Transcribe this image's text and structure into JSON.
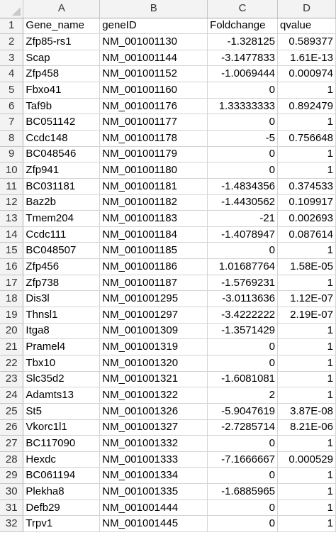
{
  "columns": [
    "A",
    "B",
    "C",
    "D"
  ],
  "rows": [
    [
      "Gene_name",
      "geneID",
      "Foldchange",
      "qvalue"
    ],
    [
      "Zfp85-rs1",
      "NM_001001130",
      "-1.328125",
      "0.589377"
    ],
    [
      "Scap",
      "NM_001001144",
      "-3.1477833",
      "1.61E-13"
    ],
    [
      "Zfp458",
      "NM_001001152",
      "-1.0069444",
      "0.000974"
    ],
    [
      "Fbxo41",
      "NM_001001160",
      "0",
      "1"
    ],
    [
      "Taf9b",
      "NM_001001176",
      "1.33333333",
      "0.892479"
    ],
    [
      "BC051142",
      "NM_001001177",
      "0",
      "1"
    ],
    [
      "Ccdc148",
      "NM_001001178",
      "-5",
      "0.756648"
    ],
    [
      "BC048546",
      "NM_001001179",
      "0",
      "1"
    ],
    [
      "Zfp941",
      "NM_001001180",
      "0",
      "1"
    ],
    [
      "BC031181",
      "NM_001001181",
      "-1.4834356",
      "0.374533"
    ],
    [
      "Baz2b",
      "NM_001001182",
      "-1.4430562",
      "0.109917"
    ],
    [
      "Tmem204",
      "NM_001001183",
      "-21",
      "0.002693"
    ],
    [
      "Ccdc111",
      "NM_001001184",
      "-1.4078947",
      "0.087614"
    ],
    [
      "BC048507",
      "NM_001001185",
      "0",
      "1"
    ],
    [
      "Zfp456",
      "NM_001001186",
      "1.01687764",
      "1.58E-05"
    ],
    [
      "Zfp738",
      "NM_001001187",
      "-1.5769231",
      "1"
    ],
    [
      "Dis3l",
      "NM_001001295",
      "-3.0113636",
      "1.12E-07"
    ],
    [
      "Thnsl1",
      "NM_001001297",
      "-3.4222222",
      "2.19E-07"
    ],
    [
      "Itga8",
      "NM_001001309",
      "-1.3571429",
      "1"
    ],
    [
      "Pramel4",
      "NM_001001319",
      "0",
      "1"
    ],
    [
      "Tbx10",
      "NM_001001320",
      "0",
      "1"
    ],
    [
      "Slc35d2",
      "NM_001001321",
      "-1.6081081",
      "1"
    ],
    [
      "Adamts13",
      "NM_001001322",
      "2",
      "1"
    ],
    [
      "St5",
      "NM_001001326",
      "-5.9047619",
      "3.87E-08"
    ],
    [
      "Vkorc1l1",
      "NM_001001327",
      "-2.7285714",
      "8.21E-06"
    ],
    [
      "BC117090",
      "NM_001001332",
      "0",
      "1"
    ],
    [
      "Hexdc",
      "NM_001001333",
      "-7.1666667",
      "0.000529"
    ],
    [
      "BC061194",
      "NM_001001334",
      "0",
      "1"
    ],
    [
      "Plekha8",
      "NM_001001335",
      "-1.6885965",
      "1"
    ],
    [
      "Defb29",
      "NM_001001444",
      "0",
      "1"
    ],
    [
      "Trpv1",
      "NM_001001445",
      "0",
      "1"
    ]
  ]
}
